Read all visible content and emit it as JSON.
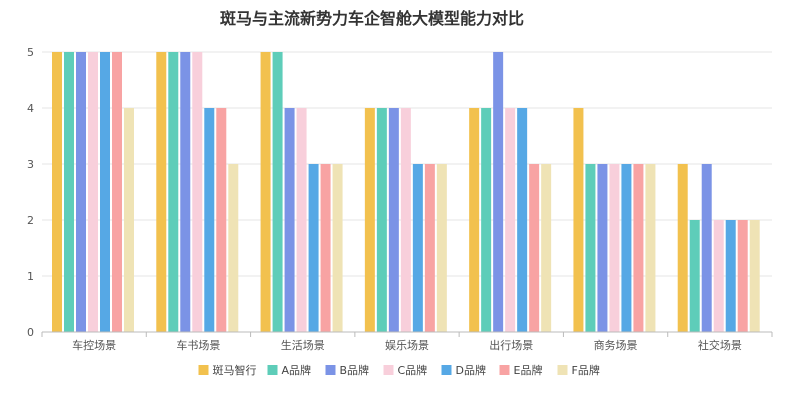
{
  "chart_data": {
    "type": "bar",
    "title": "斑马与主流新势力车企智舱大模型能力对比",
    "xlabel": "",
    "ylabel": "",
    "ylim": [
      0,
      5
    ],
    "yticks": [
      "0",
      "1",
      "2",
      "3",
      "4",
      "5"
    ],
    "categories": [
      "车控场景",
      "车书场景",
      "生活场景",
      "娱乐场景",
      "出行场景",
      "商务场景",
      "社交场景"
    ],
    "series": [
      {
        "name": "斑马智行",
        "color": "#F2C14E",
        "values": [
          5,
          5,
          5,
          4,
          4,
          4,
          3
        ]
      },
      {
        "name": "A品牌",
        "color": "#5ECDB9",
        "values": [
          5,
          5,
          5,
          4,
          4,
          3,
          2
        ]
      },
      {
        "name": "B品牌",
        "color": "#7B93E6",
        "values": [
          5,
          5,
          4,
          4,
          5,
          3,
          3
        ]
      },
      {
        "name": "C品牌",
        "color": "#F8CFDB",
        "values": [
          5,
          5,
          4,
          4,
          4,
          3,
          2
        ]
      },
      {
        "name": "D品牌",
        "color": "#56A8E5",
        "values": [
          5,
          4,
          3,
          3,
          4,
          3,
          2
        ]
      },
      {
        "name": "E品牌",
        "color": "#F8A3A3",
        "values": [
          5,
          4,
          3,
          3,
          3,
          3,
          2
        ]
      },
      {
        "name": "F品牌",
        "color": "#EFE3B5",
        "values": [
          4,
          3,
          3,
          3,
          3,
          3,
          2
        ]
      }
    ],
    "legend_position": "bottom-center",
    "grid": true
  }
}
